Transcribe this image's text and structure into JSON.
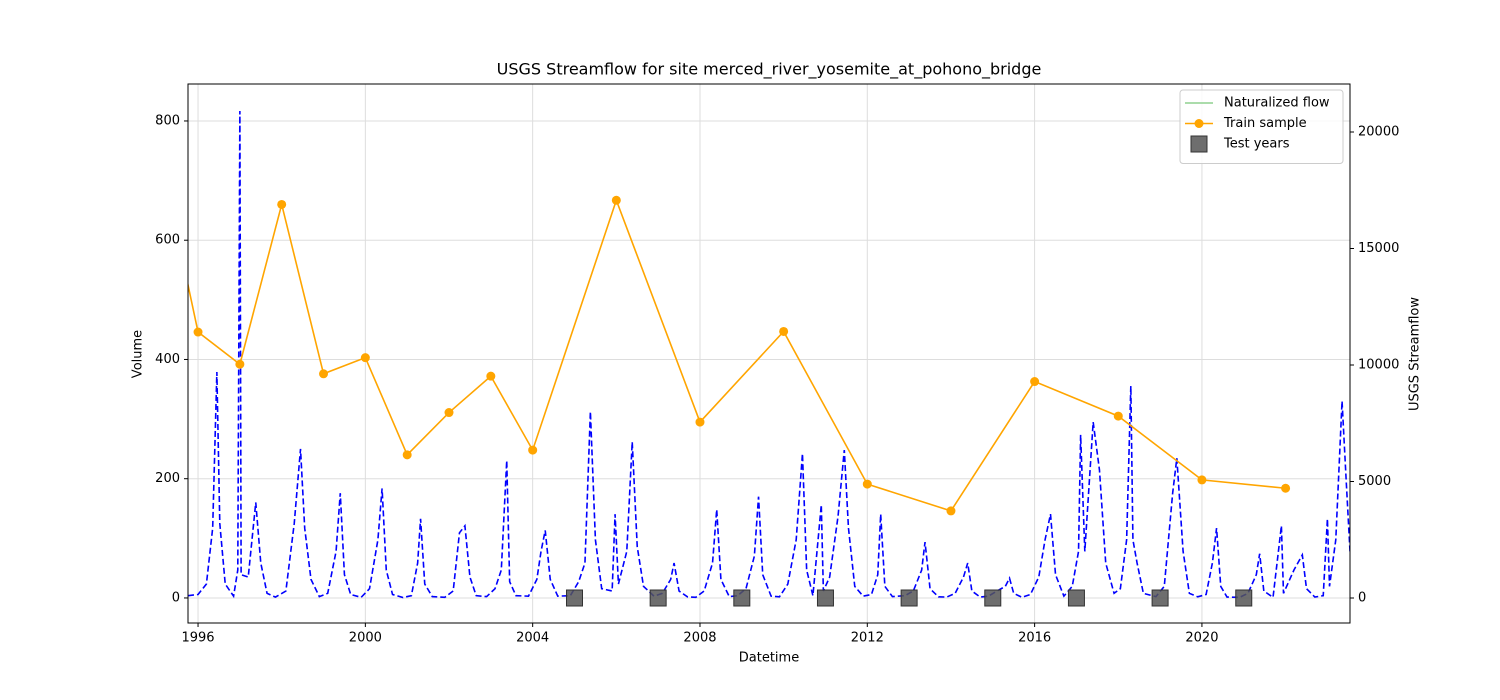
{
  "chart_data": {
    "type": "line",
    "title": "USGS Streamflow for site merced_river_yosemite_at_pohono_bridge",
    "x_label": "Datetime",
    "y_label": "Volume",
    "y2_label": "USGS Streamflow",
    "xlim": [
      1995.76,
      2023.54
    ],
    "xticks": [
      1996,
      2000,
      2004,
      2008,
      2012,
      2016,
      2020
    ],
    "ylim": [
      -42,
      862
    ],
    "yticks": [
      0,
      200,
      400,
      600,
      800
    ],
    "y2lim": [
      -1073,
      22060
    ],
    "y2ticks": [
      0,
      5000,
      10000,
      15000,
      20000
    ],
    "grid": true,
    "legend": "upper right",
    "series": [
      {
        "name": "Naturalized flow",
        "color": "#8fd18f",
        "linestyle": "solid",
        "x": [],
        "values": []
      },
      {
        "name": "Train sample",
        "color": "orange",
        "linestyle": "solid",
        "marker": "circle",
        "x": [
          1995,
          1996,
          1997,
          1998,
          1999,
          2000,
          2001,
          2002,
          2003,
          2004,
          2006,
          2008,
          2010,
          2012,
          2014,
          2016,
          2018,
          2020,
          2022
        ],
        "values": [
          775,
          446,
          392,
          660,
          376,
          403,
          240,
          311,
          372,
          248,
          667,
          295,
          447,
          191,
          146,
          363,
          305,
          198,
          184
        ]
      },
      {
        "name": "Test years",
        "color": "#555555",
        "linestyle": "none",
        "marker": "square",
        "axis": "y2",
        "x": [
          2005,
          2007,
          2009,
          2011,
          2013,
          2015,
          2017,
          2019,
          2021
        ],
        "values": [
          0,
          0,
          0,
          0,
          0,
          0,
          0,
          0,
          0
        ]
      },
      {
        "color": "blue",
        "linestyle": "dashed",
        "axis": "y2",
        "x": [
          1995.76,
          1996.0,
          1996.2,
          1996.35,
          1996.45,
          1996.52,
          1996.65,
          1996.85,
          1996.95,
          1997.0,
          1997.03,
          1997.2,
          1997.38,
          1997.5,
          1997.65,
          1997.85,
          1998.1,
          1998.3,
          1998.45,
          1998.55,
          1998.7,
          1998.9,
          1999.1,
          1999.3,
          1999.4,
          1999.5,
          1999.65,
          1999.9,
          2000.1,
          2000.3,
          2000.4,
          2000.5,
          2000.65,
          2000.9,
          2001.1,
          2001.25,
          2001.32,
          2001.42,
          2001.6,
          2001.9,
          2002.1,
          2002.25,
          2002.38,
          2002.5,
          2002.65,
          2002.9,
          2003.1,
          2003.25,
          2003.38,
          2003.45,
          2003.6,
          2003.9,
          2004.1,
          2004.2,
          2004.3,
          2004.42,
          2004.6,
          2004.9,
          2005.1,
          2005.25,
          2005.38,
          2005.5,
          2005.65,
          2005.9,
          2005.97,
          2006.05,
          2006.25,
          2006.38,
          2006.5,
          2006.65,
          2006.9,
          2007.1,
          2007.3,
          2007.38,
          2007.5,
          2007.7,
          2007.9,
          2008.1,
          2008.3,
          2008.4,
          2008.5,
          2008.7,
          2008.9,
          2009.1,
          2009.3,
          2009.4,
          2009.5,
          2009.7,
          2009.9,
          2010.1,
          2010.3,
          2010.45,
          2010.55,
          2010.7,
          2010.9,
          2010.95,
          2011.1,
          2011.3,
          2011.45,
          2011.55,
          2011.7,
          2011.9,
          2012.1,
          2012.25,
          2012.32,
          2012.42,
          2012.6,
          2012.9,
          2013.1,
          2013.3,
          2013.38,
          2013.5,
          2013.7,
          2013.9,
          2014.1,
          2014.3,
          2014.4,
          2014.5,
          2014.7,
          2014.9,
          2015.1,
          2015.3,
          2015.4,
          2015.5,
          2015.7,
          2015.9,
          2016.1,
          2016.25,
          2016.38,
          2016.5,
          2016.7,
          2016.9,
          2017.05,
          2017.1,
          2017.2,
          2017.4,
          2017.55,
          2017.7,
          2017.9,
          2018.05,
          2018.2,
          2018.3,
          2018.35,
          2018.45,
          2018.6,
          2018.9,
          2019.1,
          2019.3,
          2019.4,
          2019.55,
          2019.7,
          2019.9,
          2020.1,
          2020.25,
          2020.35,
          2020.45,
          2020.6,
          2020.9,
          2021.1,
          2021.3,
          2021.38,
          2021.48,
          2021.7,
          2021.9,
          2021.95,
          2022.2,
          2022.4,
          2022.5,
          2022.7,
          2022.9,
          2023.0,
          2023.05,
          2023.2,
          2023.35,
          2023.45,
          2023.54
        ],
        "values": [
          100,
          150,
          600,
          3000,
          9700,
          3200,
          600,
          80,
          1200,
          20900,
          1000,
          900,
          4100,
          1500,
          200,
          40,
          300,
          3200,
          6400,
          3000,
          800,
          60,
          200,
          2000,
          4500,
          1000,
          150,
          30,
          400,
          2500,
          4700,
          1200,
          150,
          20,
          100,
          1500,
          3400,
          600,
          60,
          30,
          300,
          2800,
          3100,
          900,
          100,
          60,
          400,
          1200,
          5900,
          700,
          100,
          80,
          800,
          2000,
          2900,
          800,
          80,
          100,
          700,
          1500,
          8000,
          2500,
          400,
          300,
          3600,
          600,
          2000,
          6700,
          2200,
          500,
          80,
          200,
          800,
          1500,
          300,
          50,
          30,
          300,
          1500,
          3800,
          800,
          60,
          100,
          400,
          1800,
          4350,
          1000,
          80,
          50,
          600,
          2500,
          6200,
          1200,
          100,
          4000,
          300,
          900,
          3500,
          6350,
          3000,
          500,
          80,
          150,
          1000,
          3600,
          500,
          60,
          100,
          300,
          1200,
          2400,
          400,
          50,
          40,
          200,
          900,
          1500,
          300,
          40,
          80,
          300,
          500,
          850,
          200,
          30,
          150,
          900,
          2500,
          3600,
          1000,
          80,
          500,
          2000,
          7000,
          2000,
          7550,
          5500,
          1500,
          200,
          400,
          2500,
          9100,
          2500,
          1500,
          200,
          60,
          500,
          4500,
          6000,
          2000,
          200,
          50,
          150,
          1500,
          3000,
          500,
          40,
          30,
          200,
          1000,
          1900,
          300,
          30,
          3100,
          200,
          1200,
          1850,
          400,
          40,
          100,
          3400,
          500,
          2500,
          8450,
          5000,
          2000
        ]
      }
    ]
  }
}
